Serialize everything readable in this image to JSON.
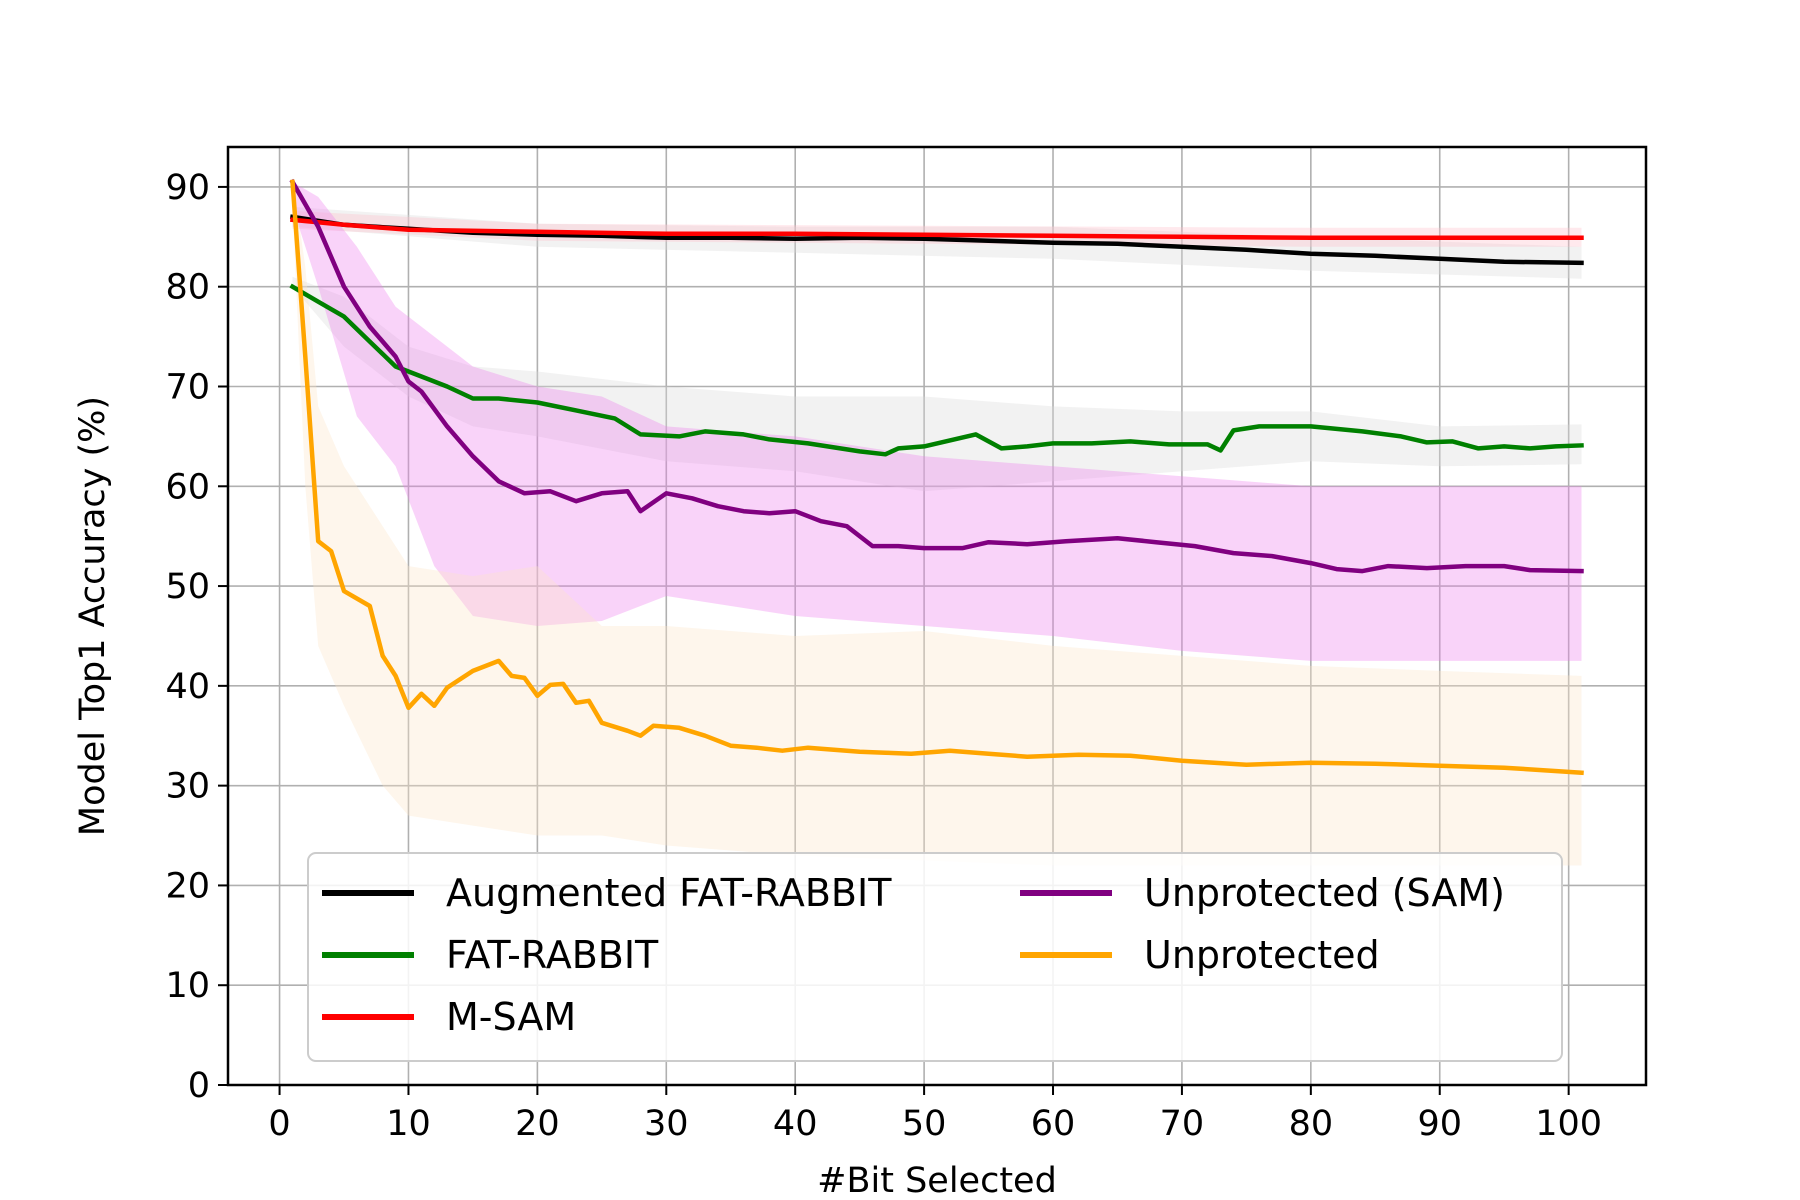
{
  "chart_data": {
    "type": "line",
    "xlabel": "#Bit Selected",
    "ylabel": "Model Top1 Accuracy (%)",
    "xlim": [
      -4,
      106
    ],
    "ylim": [
      0,
      94
    ],
    "xticks": [
      0,
      10,
      20,
      30,
      40,
      50,
      60,
      70,
      80,
      90,
      100
    ],
    "yticks": [
      0,
      10,
      20,
      30,
      40,
      50,
      60,
      70,
      80,
      90
    ],
    "grid": true,
    "legend": {
      "position": "lower center",
      "columns": 2
    },
    "series": [
      {
        "name": "Augmented FAT-RABBIT",
        "color": "#000000",
        "band_color": "#d9d9d9",
        "points": [
          [
            1,
            87
          ],
          [
            5,
            86.2
          ],
          [
            10,
            85.8
          ],
          [
            15,
            85.4
          ],
          [
            20,
            85.2
          ],
          [
            25,
            85.1
          ],
          [
            30,
            84.9
          ],
          [
            35,
            84.9
          ],
          [
            40,
            84.8
          ],
          [
            45,
            84.9
          ],
          [
            50,
            84.8
          ],
          [
            55,
            84.6
          ],
          [
            60,
            84.4
          ],
          [
            65,
            84.3
          ],
          [
            70,
            84
          ],
          [
            75,
            83.7
          ],
          [
            80,
            83.3
          ],
          [
            85,
            83.1
          ],
          [
            90,
            82.8
          ],
          [
            95,
            82.5
          ],
          [
            101,
            82.4
          ]
        ],
        "band": [
          [
            1,
            86,
            88
          ],
          [
            20,
            84,
            86.3
          ],
          [
            40,
            83.4,
            86
          ],
          [
            60,
            82.8,
            86
          ],
          [
            80,
            81.6,
            85
          ],
          [
            101,
            80.8,
            84
          ]
        ]
      },
      {
        "name": "FAT-RABBIT",
        "color": "#008000",
        "band_color": "#d9d9d9",
        "points": [
          [
            1,
            80
          ],
          [
            3,
            78.5
          ],
          [
            5,
            77
          ],
          [
            7,
            74.5
          ],
          [
            9,
            72
          ],
          [
            11,
            71
          ],
          [
            13,
            70
          ],
          [
            15,
            68.8
          ],
          [
            17,
            68.8
          ],
          [
            20,
            68.4
          ],
          [
            23,
            67.6
          ],
          [
            26,
            66.8
          ],
          [
            28,
            65.2
          ],
          [
            31,
            65
          ],
          [
            33,
            65.5
          ],
          [
            36,
            65.2
          ],
          [
            38,
            64.7
          ],
          [
            41,
            64.3
          ],
          [
            43,
            63.9
          ],
          [
            45,
            63.5
          ],
          [
            47,
            63.2
          ],
          [
            48,
            63.8
          ],
          [
            50,
            64
          ],
          [
            52,
            64.6
          ],
          [
            54,
            65.2
          ],
          [
            56,
            63.8
          ],
          [
            58,
            64
          ],
          [
            60,
            64.3
          ],
          [
            63,
            64.3
          ],
          [
            66,
            64.5
          ],
          [
            69,
            64.2
          ],
          [
            72,
            64.2
          ],
          [
            73,
            63.6
          ],
          [
            74,
            65.6
          ],
          [
            76,
            66
          ],
          [
            80,
            66
          ],
          [
            84,
            65.5
          ],
          [
            87,
            65
          ],
          [
            89,
            64.4
          ],
          [
            91,
            64.5
          ],
          [
            93,
            63.8
          ],
          [
            95,
            64
          ],
          [
            97,
            63.8
          ],
          [
            99,
            64
          ],
          [
            101,
            64.1
          ]
        ],
        "band": [
          [
            1,
            80,
            81
          ],
          [
            5,
            74,
            79
          ],
          [
            10,
            69,
            74
          ],
          [
            15,
            66,
            72
          ],
          [
            20,
            65,
            71.5
          ],
          [
            30,
            62.5,
            70
          ],
          [
            40,
            61.5,
            69
          ],
          [
            50,
            59.5,
            69
          ],
          [
            60,
            60.5,
            68
          ],
          [
            70,
            61.5,
            67.5
          ],
          [
            80,
            62.5,
            67.5
          ],
          [
            90,
            62,
            66
          ],
          [
            101,
            62.2,
            66.2
          ]
        ]
      },
      {
        "name": "M-SAM",
        "color": "#ff0000",
        "band_color": "#ffc0cb",
        "points": [
          [
            1,
            86.7
          ],
          [
            5,
            86.2
          ],
          [
            10,
            85.7
          ],
          [
            20,
            85.5
          ],
          [
            30,
            85.3
          ],
          [
            40,
            85.3
          ],
          [
            50,
            85.2
          ],
          [
            60,
            85.1
          ],
          [
            70,
            85
          ],
          [
            80,
            84.9
          ],
          [
            90,
            84.9
          ],
          [
            101,
            84.9
          ]
        ],
        "band": [
          [
            1,
            85.8,
            87.6
          ],
          [
            20,
            84.6,
            86.3
          ],
          [
            50,
            84.3,
            86.1
          ],
          [
            80,
            84,
            85.9
          ],
          [
            101,
            84,
            85.9
          ]
        ]
      },
      {
        "name": "Unprotected (SAM)",
        "color": "#800080",
        "band_color": "#ee82ee",
        "points": [
          [
            1,
            90.5
          ],
          [
            3,
            86
          ],
          [
            5,
            80
          ],
          [
            7,
            76
          ],
          [
            9,
            73
          ],
          [
            10,
            70.5
          ],
          [
            11,
            69.5
          ],
          [
            13,
            66
          ],
          [
            15,
            63
          ],
          [
            17,
            60.5
          ],
          [
            19,
            59.3
          ],
          [
            21,
            59.5
          ],
          [
            23,
            58.5
          ],
          [
            25,
            59.3
          ],
          [
            27,
            59.5
          ],
          [
            28,
            57.5
          ],
          [
            30,
            59.3
          ],
          [
            32,
            58.8
          ],
          [
            34,
            58
          ],
          [
            36,
            57.5
          ],
          [
            38,
            57.3
          ],
          [
            40,
            57.5
          ],
          [
            42,
            56.5
          ],
          [
            44,
            56
          ],
          [
            46,
            54
          ],
          [
            48,
            54
          ],
          [
            50,
            53.8
          ],
          [
            53,
            53.8
          ],
          [
            55,
            54.4
          ],
          [
            58,
            54.2
          ],
          [
            61,
            54.5
          ],
          [
            65,
            54.8
          ],
          [
            68,
            54.4
          ],
          [
            71,
            54
          ],
          [
            74,
            53.3
          ],
          [
            77,
            53
          ],
          [
            80,
            52.3
          ],
          [
            82,
            51.7
          ],
          [
            84,
            51.5
          ],
          [
            86,
            52
          ],
          [
            89,
            51.8
          ],
          [
            92,
            52
          ],
          [
            95,
            52
          ],
          [
            97,
            51.6
          ],
          [
            101,
            51.5
          ]
        ],
        "band": [
          [
            1,
            88,
            90.5
          ],
          [
            3,
            80,
            89
          ],
          [
            6,
            67,
            84
          ],
          [
            9,
            62,
            78
          ],
          [
            12,
            52,
            75
          ],
          [
            15,
            47,
            72
          ],
          [
            20,
            46,
            70
          ],
          [
            25,
            46.5,
            69
          ],
          [
            30,
            49,
            66
          ],
          [
            40,
            47,
            65
          ],
          [
            50,
            46,
            63
          ],
          [
            60,
            45,
            62
          ],
          [
            70,
            43.5,
            61
          ],
          [
            80,
            42.5,
            60
          ],
          [
            90,
            42.5,
            60
          ],
          [
            101,
            42.5,
            60
          ]
        ]
      },
      {
        "name": "Unprotected",
        "color": "#ffa500",
        "band_color": "#fde6c8",
        "points": [
          [
            1,
            90.5
          ],
          [
            2,
            73
          ],
          [
            3,
            54.5
          ],
          [
            4,
            53.5
          ],
          [
            5,
            49.5
          ],
          [
            7,
            48
          ],
          [
            8,
            43
          ],
          [
            9,
            41
          ],
          [
            10,
            37.8
          ],
          [
            11,
            39.2
          ],
          [
            12,
            38
          ],
          [
            13,
            39.8
          ],
          [
            15,
            41.5
          ],
          [
            17,
            42.5
          ],
          [
            18,
            41
          ],
          [
            19,
            40.8
          ],
          [
            20,
            39
          ],
          [
            21,
            40.1
          ],
          [
            22,
            40.2
          ],
          [
            23,
            38.3
          ],
          [
            24,
            38.5
          ],
          [
            25,
            36.3
          ],
          [
            27,
            35.5
          ],
          [
            28,
            35
          ],
          [
            29,
            36
          ],
          [
            31,
            35.8
          ],
          [
            33,
            35
          ],
          [
            35,
            34
          ],
          [
            37,
            33.8
          ],
          [
            39,
            33.5
          ],
          [
            41,
            33.8
          ],
          [
            43,
            33.6
          ],
          [
            45,
            33.4
          ],
          [
            47,
            33.3
          ],
          [
            49,
            33.2
          ],
          [
            52,
            33.5
          ],
          [
            55,
            33.2
          ],
          [
            58,
            32.9
          ],
          [
            62,
            33.1
          ],
          [
            66,
            33
          ],
          [
            70,
            32.5
          ],
          [
            75,
            32.1
          ],
          [
            80,
            32.3
          ],
          [
            85,
            32.2
          ],
          [
            90,
            32
          ],
          [
            95,
            31.8
          ],
          [
            101,
            31.3
          ]
        ],
        "band": [
          [
            1,
            88,
            91
          ],
          [
            2,
            60,
            82
          ],
          [
            3,
            44,
            68
          ],
          [
            5,
            38,
            62
          ],
          [
            8,
            30,
            56
          ],
          [
            10,
            27,
            52
          ],
          [
            15,
            26,
            51
          ],
          [
            20,
            25,
            52
          ],
          [
            25,
            25,
            46
          ],
          [
            30,
            24,
            46
          ],
          [
            40,
            23,
            45
          ],
          [
            50,
            22.5,
            45.5
          ],
          [
            60,
            22,
            44
          ],
          [
            70,
            22,
            43
          ],
          [
            80,
            22,
            42
          ],
          [
            90,
            22,
            41.5
          ],
          [
            101,
            22,
            41
          ]
        ]
      }
    ]
  }
}
